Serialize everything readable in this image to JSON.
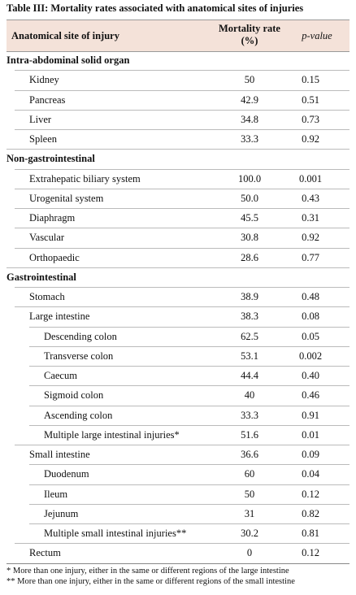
{
  "table": {
    "title": "Table III: Mortality rates associated with anatomical sites of injuries",
    "columns": [
      "Anatomical site of injury",
      "Mortality rate (%)",
      "p-value"
    ],
    "sections": [
      {
        "title": "Intra-abdominal solid organ",
        "rows": [
          {
            "label": "Kidney",
            "mortality": "50",
            "p": "0.15"
          },
          {
            "label": "Pancreas",
            "mortality": "42.9",
            "p": "0.51"
          },
          {
            "label": "Liver",
            "mortality": "34.8",
            "p": "0.73"
          },
          {
            "label": "Spleen",
            "mortality": "33.3",
            "p": "0.92"
          }
        ]
      },
      {
        "title": "Non-gastrointestinal",
        "rows": [
          {
            "label": "Extrahepatic biliary system",
            "mortality": "100.0",
            "p": "0.001"
          },
          {
            "label": "Urogenital system",
            "mortality": "50.0",
            "p": "0.43"
          },
          {
            "label": "Diaphragm",
            "mortality": "45.5",
            "p": "0.31"
          },
          {
            "label": "Vascular",
            "mortality": "30.8",
            "p": "0.92"
          },
          {
            "label": "Orthopaedic",
            "mortality": "28.6",
            "p": "0.77"
          }
        ]
      },
      {
        "title": "Gastrointestinal",
        "rows": [
          {
            "label": "Stomach",
            "mortality": "38.9",
            "p": "0.48"
          },
          {
            "label": "Large intestine",
            "mortality": "38.3",
            "p": "0.08",
            "subrows": [
              {
                "label": "Descending colon",
                "mortality": "62.5",
                "p": "0.05"
              },
              {
                "label": "Transverse colon",
                "mortality": "53.1",
                "p": "0.002"
              },
              {
                "label": "Caecum",
                "mortality": "44.4",
                "p": "0.40"
              },
              {
                "label": "Sigmoid colon",
                "mortality": "40",
                "p": "0.46"
              },
              {
                "label": "Ascending colon",
                "mortality": "33.3",
                "p": "0.91"
              },
              {
                "label": "Multiple large intestinal injuries*",
                "mortality": "51.6",
                "p": "0.01"
              }
            ]
          },
          {
            "label": "Small intestine",
            "mortality": "36.6",
            "p": "0.09",
            "subrows": [
              {
                "label": "Duodenum",
                "mortality": "60",
                "p": "0.04"
              },
              {
                "label": "Ileum",
                "mortality": "50",
                "p": "0.12"
              },
              {
                "label": "Jejunum",
                "mortality": "31",
                "p": "0.82"
              },
              {
                "label": "Multiple small intestinal injuries**",
                "mortality": "30.2",
                "p": "0.81"
              }
            ]
          },
          {
            "label": "Rectum",
            "mortality": "0",
            "p": "0.12"
          }
        ]
      }
    ],
    "footnotes": [
      "* More than one injury, either in the same or different regions of the large intestine",
      "** More than one injury, either in the same or different regions of the small intestine"
    ]
  }
}
